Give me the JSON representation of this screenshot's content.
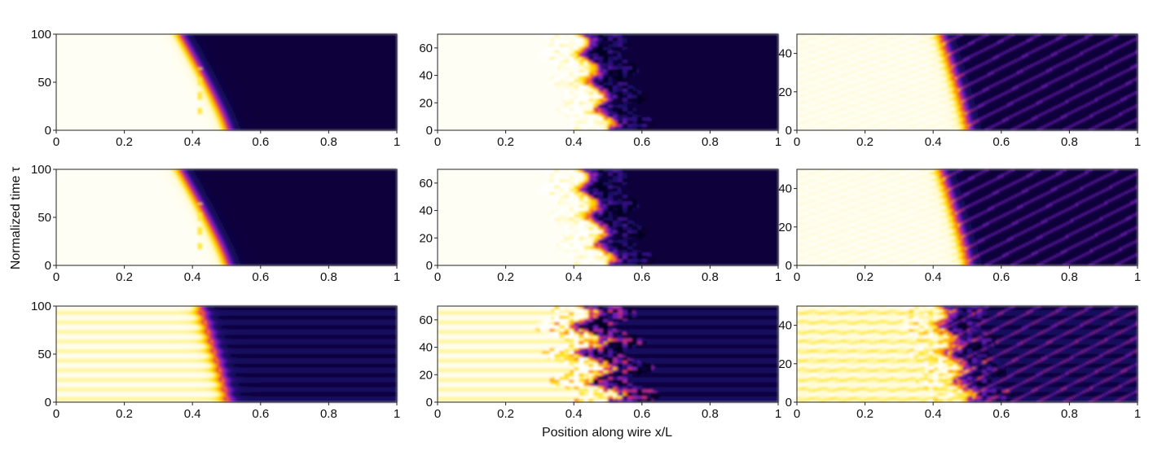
{
  "xlabel": "Position along wire x/L",
  "ylabel": "Normalized time τ",
  "colormap": {
    "stops": [
      "#ffffff",
      "#fffbd0",
      "#ffe100",
      "#ff9c00",
      "#e0305a",
      "#7a20c8",
      "#1c0a6e",
      "#050320"
    ]
  },
  "chart_data": [
    {
      "type": "heatmap",
      "row": 1,
      "col": 1,
      "xlim": [
        0,
        1
      ],
      "ylim": [
        0,
        100
      ],
      "xticks": [
        "0",
        "0.2",
        "0.4",
        "0.6",
        "0.8",
        "1"
      ],
      "yticks": [
        "0",
        "50",
        "100"
      ],
      "front_start": 0.5,
      "front_end": 0.36,
      "pinning_x": 0.42,
      "bands": false,
      "fringes": false,
      "turbulence": 0
    },
    {
      "type": "heatmap",
      "row": 1,
      "col": 2,
      "xlim": [
        0,
        1
      ],
      "ylim": [
        0,
        70
      ],
      "xticks": [
        "0",
        "0.2",
        "0.4",
        "0.6",
        "0.8",
        "1"
      ],
      "yticks": [
        "0",
        "20",
        "40",
        "60"
      ],
      "front_start": 0.5,
      "front_end": 0.42,
      "pinning_x": 0.42,
      "bands": false,
      "fringes": false,
      "turbulence": 1
    },
    {
      "type": "heatmap",
      "row": 1,
      "col": 3,
      "xlim": [
        0,
        1
      ],
      "ylim": [
        0,
        50
      ],
      "xticks": [
        "0",
        "0.2",
        "0.4",
        "0.6",
        "0.8",
        "1"
      ],
      "yticks": [
        "0",
        "20",
        "40"
      ],
      "front_start": 0.5,
      "front_end": 0.42,
      "pinning_x": 0.42,
      "bands": false,
      "fringes": true,
      "turbulence": 0
    },
    {
      "type": "heatmap",
      "row": 2,
      "col": 1,
      "xlim": [
        0,
        1
      ],
      "ylim": [
        0,
        100
      ],
      "xticks": [
        "0",
        "0.2",
        "0.4",
        "0.6",
        "0.8",
        "1"
      ],
      "yticks": [
        "0",
        "50",
        "100"
      ],
      "front_start": 0.5,
      "front_end": 0.36,
      "pinning_x": 0.42,
      "bands": false,
      "fringes": false,
      "turbulence": 0
    },
    {
      "type": "heatmap",
      "row": 2,
      "col": 2,
      "xlim": [
        0,
        1
      ],
      "ylim": [
        0,
        70
      ],
      "xticks": [
        "0",
        "0.2",
        "0.4",
        "0.6",
        "0.8",
        "1"
      ],
      "yticks": [
        "0",
        "20",
        "40",
        "60"
      ],
      "front_start": 0.5,
      "front_end": 0.42,
      "pinning_x": 0.42,
      "bands": false,
      "fringes": false,
      "turbulence": 1
    },
    {
      "type": "heatmap",
      "row": 2,
      "col": 3,
      "xlim": [
        0,
        1
      ],
      "ylim": [
        0,
        50
      ],
      "xticks": [
        "0",
        "0.2",
        "0.4",
        "0.6",
        "0.8",
        "1"
      ],
      "yticks": [
        "0",
        "20",
        "40"
      ],
      "front_start": 0.5,
      "front_end": 0.42,
      "pinning_x": 0.42,
      "bands": false,
      "fringes": true,
      "turbulence": 0
    },
    {
      "type": "heatmap",
      "row": 3,
      "col": 1,
      "xlim": [
        0,
        1
      ],
      "ylim": [
        0,
        100
      ],
      "xticks": [
        "0",
        "0.2",
        "0.4",
        "0.6",
        "0.8",
        "1"
      ],
      "yticks": [
        "0",
        "50",
        "100"
      ],
      "front_start": 0.5,
      "front_end": 0.42,
      "pinning_x": 0.42,
      "bands": true,
      "fringes": false,
      "turbulence": 0
    },
    {
      "type": "heatmap",
      "row": 3,
      "col": 2,
      "xlim": [
        0,
        1
      ],
      "ylim": [
        0,
        70
      ],
      "xticks": [
        "0",
        "0.2",
        "0.4",
        "0.6",
        "0.8",
        "1"
      ],
      "yticks": [
        "0",
        "20",
        "40",
        "60"
      ],
      "front_start": 0.5,
      "front_end": 0.42,
      "pinning_x": 0.42,
      "bands": true,
      "fringes": false,
      "turbulence": 2
    },
    {
      "type": "heatmap",
      "row": 3,
      "col": 3,
      "xlim": [
        0,
        1
      ],
      "ylim": [
        0,
        50
      ],
      "xticks": [
        "0",
        "0.2",
        "0.4",
        "0.6",
        "0.8",
        "1"
      ],
      "yticks": [
        "0",
        "20",
        "40"
      ],
      "front_start": 0.5,
      "front_end": 0.42,
      "pinning_x": 0.42,
      "bands": true,
      "fringes": true,
      "turbulence": 1
    }
  ]
}
